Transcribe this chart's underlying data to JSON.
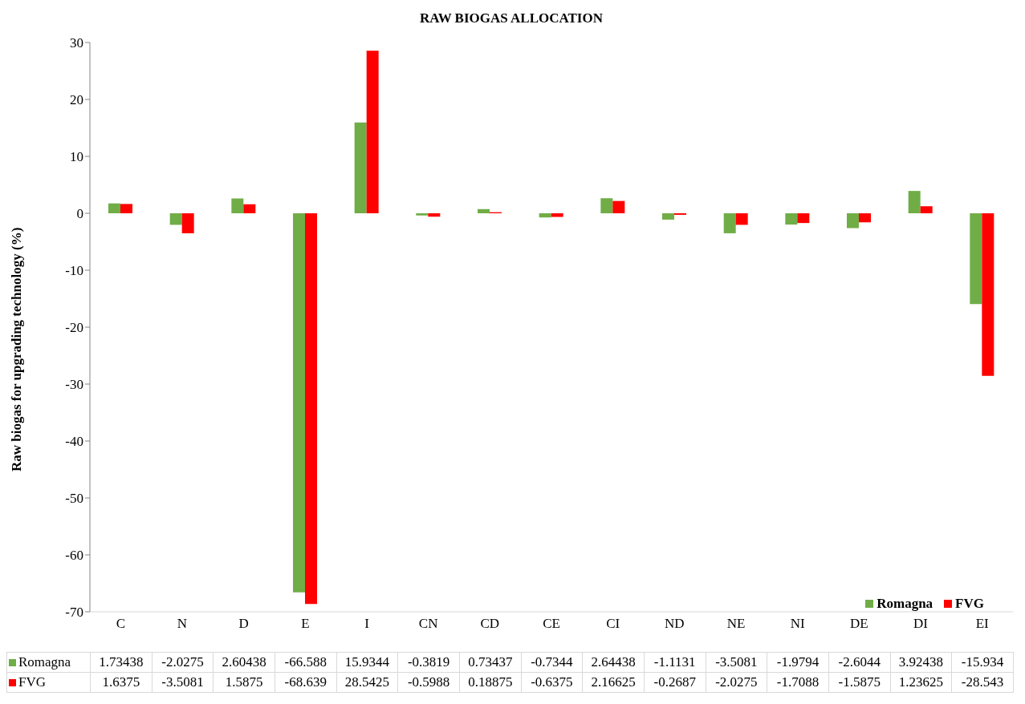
{
  "chart_data": {
    "type": "bar",
    "title": "RAW BIOGAS ALLOCATION",
    "ylabel": "Raw biogas for upgrading technology (%)",
    "categories": [
      "C",
      "N",
      "D",
      "E",
      "I",
      "CN",
      "CD",
      "CE",
      "CI",
      "ND",
      "NE",
      "NI",
      "DE",
      "DI",
      "EI"
    ],
    "series": [
      {
        "name": "Romagna",
        "color": "#70ad47",
        "values": [
          1.73438,
          -2.0275,
          2.60438,
          -66.588,
          15.9344,
          -0.3819,
          0.73437,
          -0.7344,
          2.64438,
          -1.1131,
          -3.5081,
          -1.9794,
          -2.6044,
          3.92438,
          -15.934
        ]
      },
      {
        "name": "FVG",
        "color": "#ff0000",
        "values": [
          1.6375,
          -3.5081,
          1.5875,
          -68.639,
          28.5425,
          -0.5988,
          0.18875,
          -0.6375,
          2.16625,
          -0.2687,
          -2.0275,
          -1.7088,
          -1.5875,
          1.23625,
          -28.543
        ]
      }
    ],
    "ylim": [
      -70,
      30
    ],
    "yticks": [
      -70,
      -60,
      -50,
      -40,
      -30,
      -20,
      -10,
      0,
      10,
      20,
      30
    ],
    "legend": "bottom right",
    "data_labels": true
  }
}
